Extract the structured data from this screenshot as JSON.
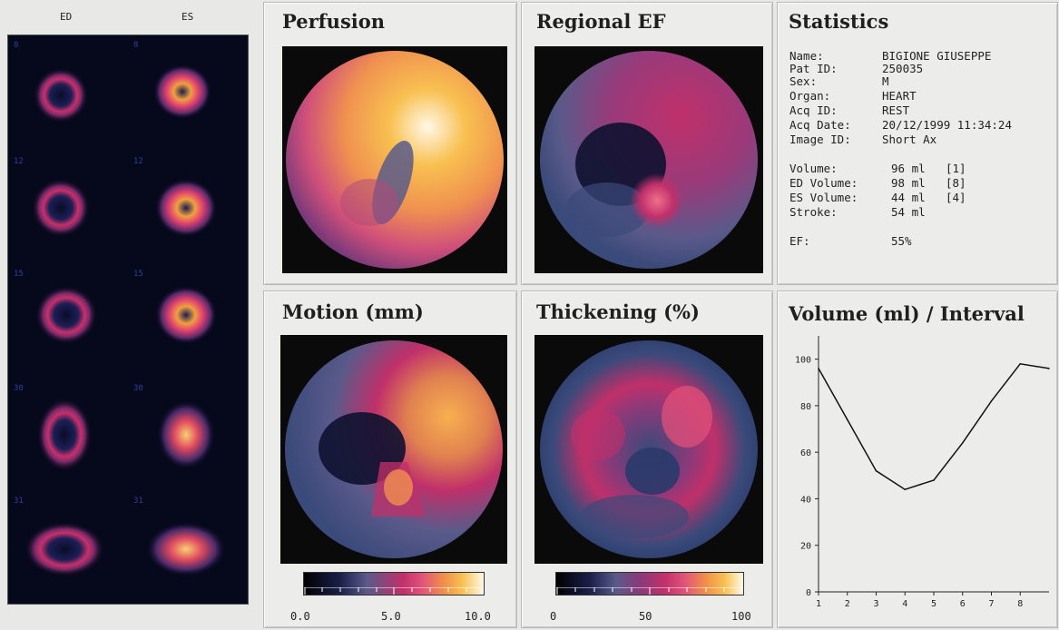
{
  "slices": {
    "col_ed": "ED",
    "col_es": "ES",
    "rows": [
      {
        "ed_num": "8",
        "es_num": "8"
      },
      {
        "ed_num": "12",
        "es_num": "12"
      },
      {
        "ed_num": "15",
        "es_num": "15"
      },
      {
        "ed_num": "30",
        "es_num": "30"
      },
      {
        "ed_num": "31",
        "es_num": "31"
      }
    ]
  },
  "panels": {
    "perfusion": "Perfusion",
    "regional_ef": "Regional EF",
    "motion": "Motion (mm)",
    "thickening": "Thickening (%)",
    "statistics": "Statistics",
    "volume": "Volume (ml) / Interval"
  },
  "statistics": {
    "patient": [
      {
        "label": "Name:",
        "value": "BIGIONE GIUSEPPE"
      },
      {
        "label": "Pat ID:",
        "value": "250035"
      },
      {
        "label": "Sex:",
        "value": "M"
      },
      {
        "label": "Organ:",
        "value": "HEART"
      },
      {
        "label": "Acq ID:",
        "value": "REST"
      },
      {
        "label": "Acq Date:",
        "value": "20/12/1999 11:34:24"
      },
      {
        "label": "Image ID:",
        "value": "Short Ax"
      }
    ],
    "volumes": [
      {
        "label": "Volume:",
        "value": "96 ml",
        "note": "[1]"
      },
      {
        "label": "ED Volume:",
        "value": "98 ml",
        "note": "[8]"
      },
      {
        "label": "ES Volume:",
        "value": "44 ml",
        "note": "[4]"
      },
      {
        "label": "Stroke:",
        "value": "54 ml",
        "note": ""
      }
    ],
    "ef_label": "EF:",
    "ef_value": "55%"
  },
  "scales": {
    "motion": {
      "min": "0.0",
      "mid": "5.0",
      "max": "10.0"
    },
    "thickening": {
      "min": "0",
      "mid": "50",
      "max": "100"
    }
  },
  "colormap": [
    "#000000",
    "#1a1f4a",
    "#3a4a7a",
    "#5a5a8a",
    "#8a3a7a",
    "#c0306a",
    "#e0507a",
    "#f0904a",
    "#f8c050",
    "#fff6e0"
  ],
  "chart_data": {
    "type": "line",
    "title": "Volume (ml) / Interval",
    "xlabel": "",
    "ylabel": "",
    "x": [
      1,
      2,
      3,
      4,
      5,
      6,
      7,
      8,
      9
    ],
    "x_ticks": [
      "1",
      "2",
      "3",
      "4",
      "5",
      "6",
      "7",
      "8"
    ],
    "y_ticks": [
      "0",
      "20",
      "40",
      "60",
      "80",
      "100"
    ],
    "values": [
      96,
      74,
      52,
      44,
      48,
      64,
      82,
      98,
      96
    ],
    "xlim": [
      1,
      9
    ],
    "ylim": [
      0,
      110
    ],
    "grid": false
  }
}
